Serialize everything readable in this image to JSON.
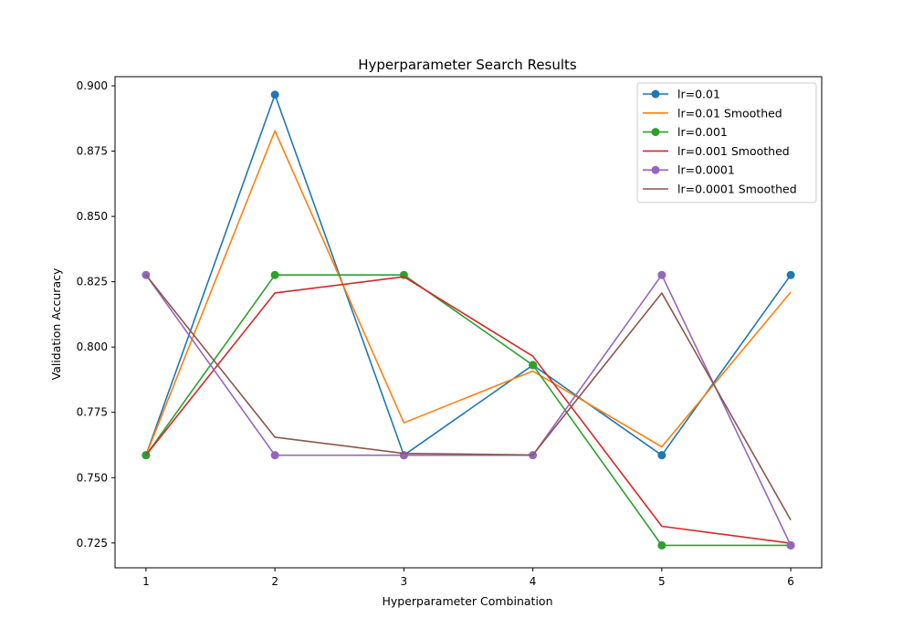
{
  "chart_data": {
    "type": "line",
    "title": "Hyperparameter Search Results",
    "xlabel": "Hyperparameter Combination",
    "ylabel": "Validation Accuracy",
    "x": [
      1,
      2,
      3,
      4,
      5,
      6
    ],
    "xlim": [
      0.76,
      6.24
    ],
    "ylim": [
      0.7155,
      0.9035
    ],
    "yticks": [
      0.725,
      0.75,
      0.775,
      0.8,
      0.825,
      0.85,
      0.875,
      0.9
    ],
    "ytick_labels": [
      "0.725",
      "0.750",
      "0.775",
      "0.800",
      "0.825",
      "0.850",
      "0.875",
      "0.900"
    ],
    "xtick_labels": [
      "1",
      "2",
      "3",
      "4",
      "5",
      "6"
    ],
    "grid": false,
    "legend_position": "top-right",
    "series": [
      {
        "name": "lr=0.01",
        "color": "#1f77b4",
        "marker": true,
        "values": [
          0.7586,
          0.8966,
          0.7586,
          0.7931,
          0.7586,
          0.8276
        ]
      },
      {
        "name": "lr=0.01 Smoothed",
        "color": "#ff7f0e",
        "marker": false,
        "values": [
          0.7586,
          0.8828,
          0.771,
          0.7908,
          0.7618,
          0.821
        ]
      },
      {
        "name": "lr=0.001",
        "color": "#2ca02c",
        "marker": true,
        "values": [
          0.7586,
          0.8276,
          0.8276,
          0.7931,
          0.7241,
          0.7241
        ]
      },
      {
        "name": "lr=0.001 Smoothed",
        "color": "#d62728",
        "marker": false,
        "values": [
          0.7586,
          0.8207,
          0.8269,
          0.7965,
          0.7314,
          0.7249
        ]
      },
      {
        "name": "lr=0.0001",
        "color": "#9467bd",
        "marker": true,
        "values": [
          0.8276,
          0.7586,
          0.7586,
          0.7586,
          0.8276,
          0.7241
        ]
      },
      {
        "name": "lr=0.0001 Smoothed",
        "color": "#8c564b",
        "marker": false,
        "values": [
          0.8276,
          0.7655,
          0.7593,
          0.7587,
          0.8207,
          0.7338
        ]
      }
    ]
  }
}
